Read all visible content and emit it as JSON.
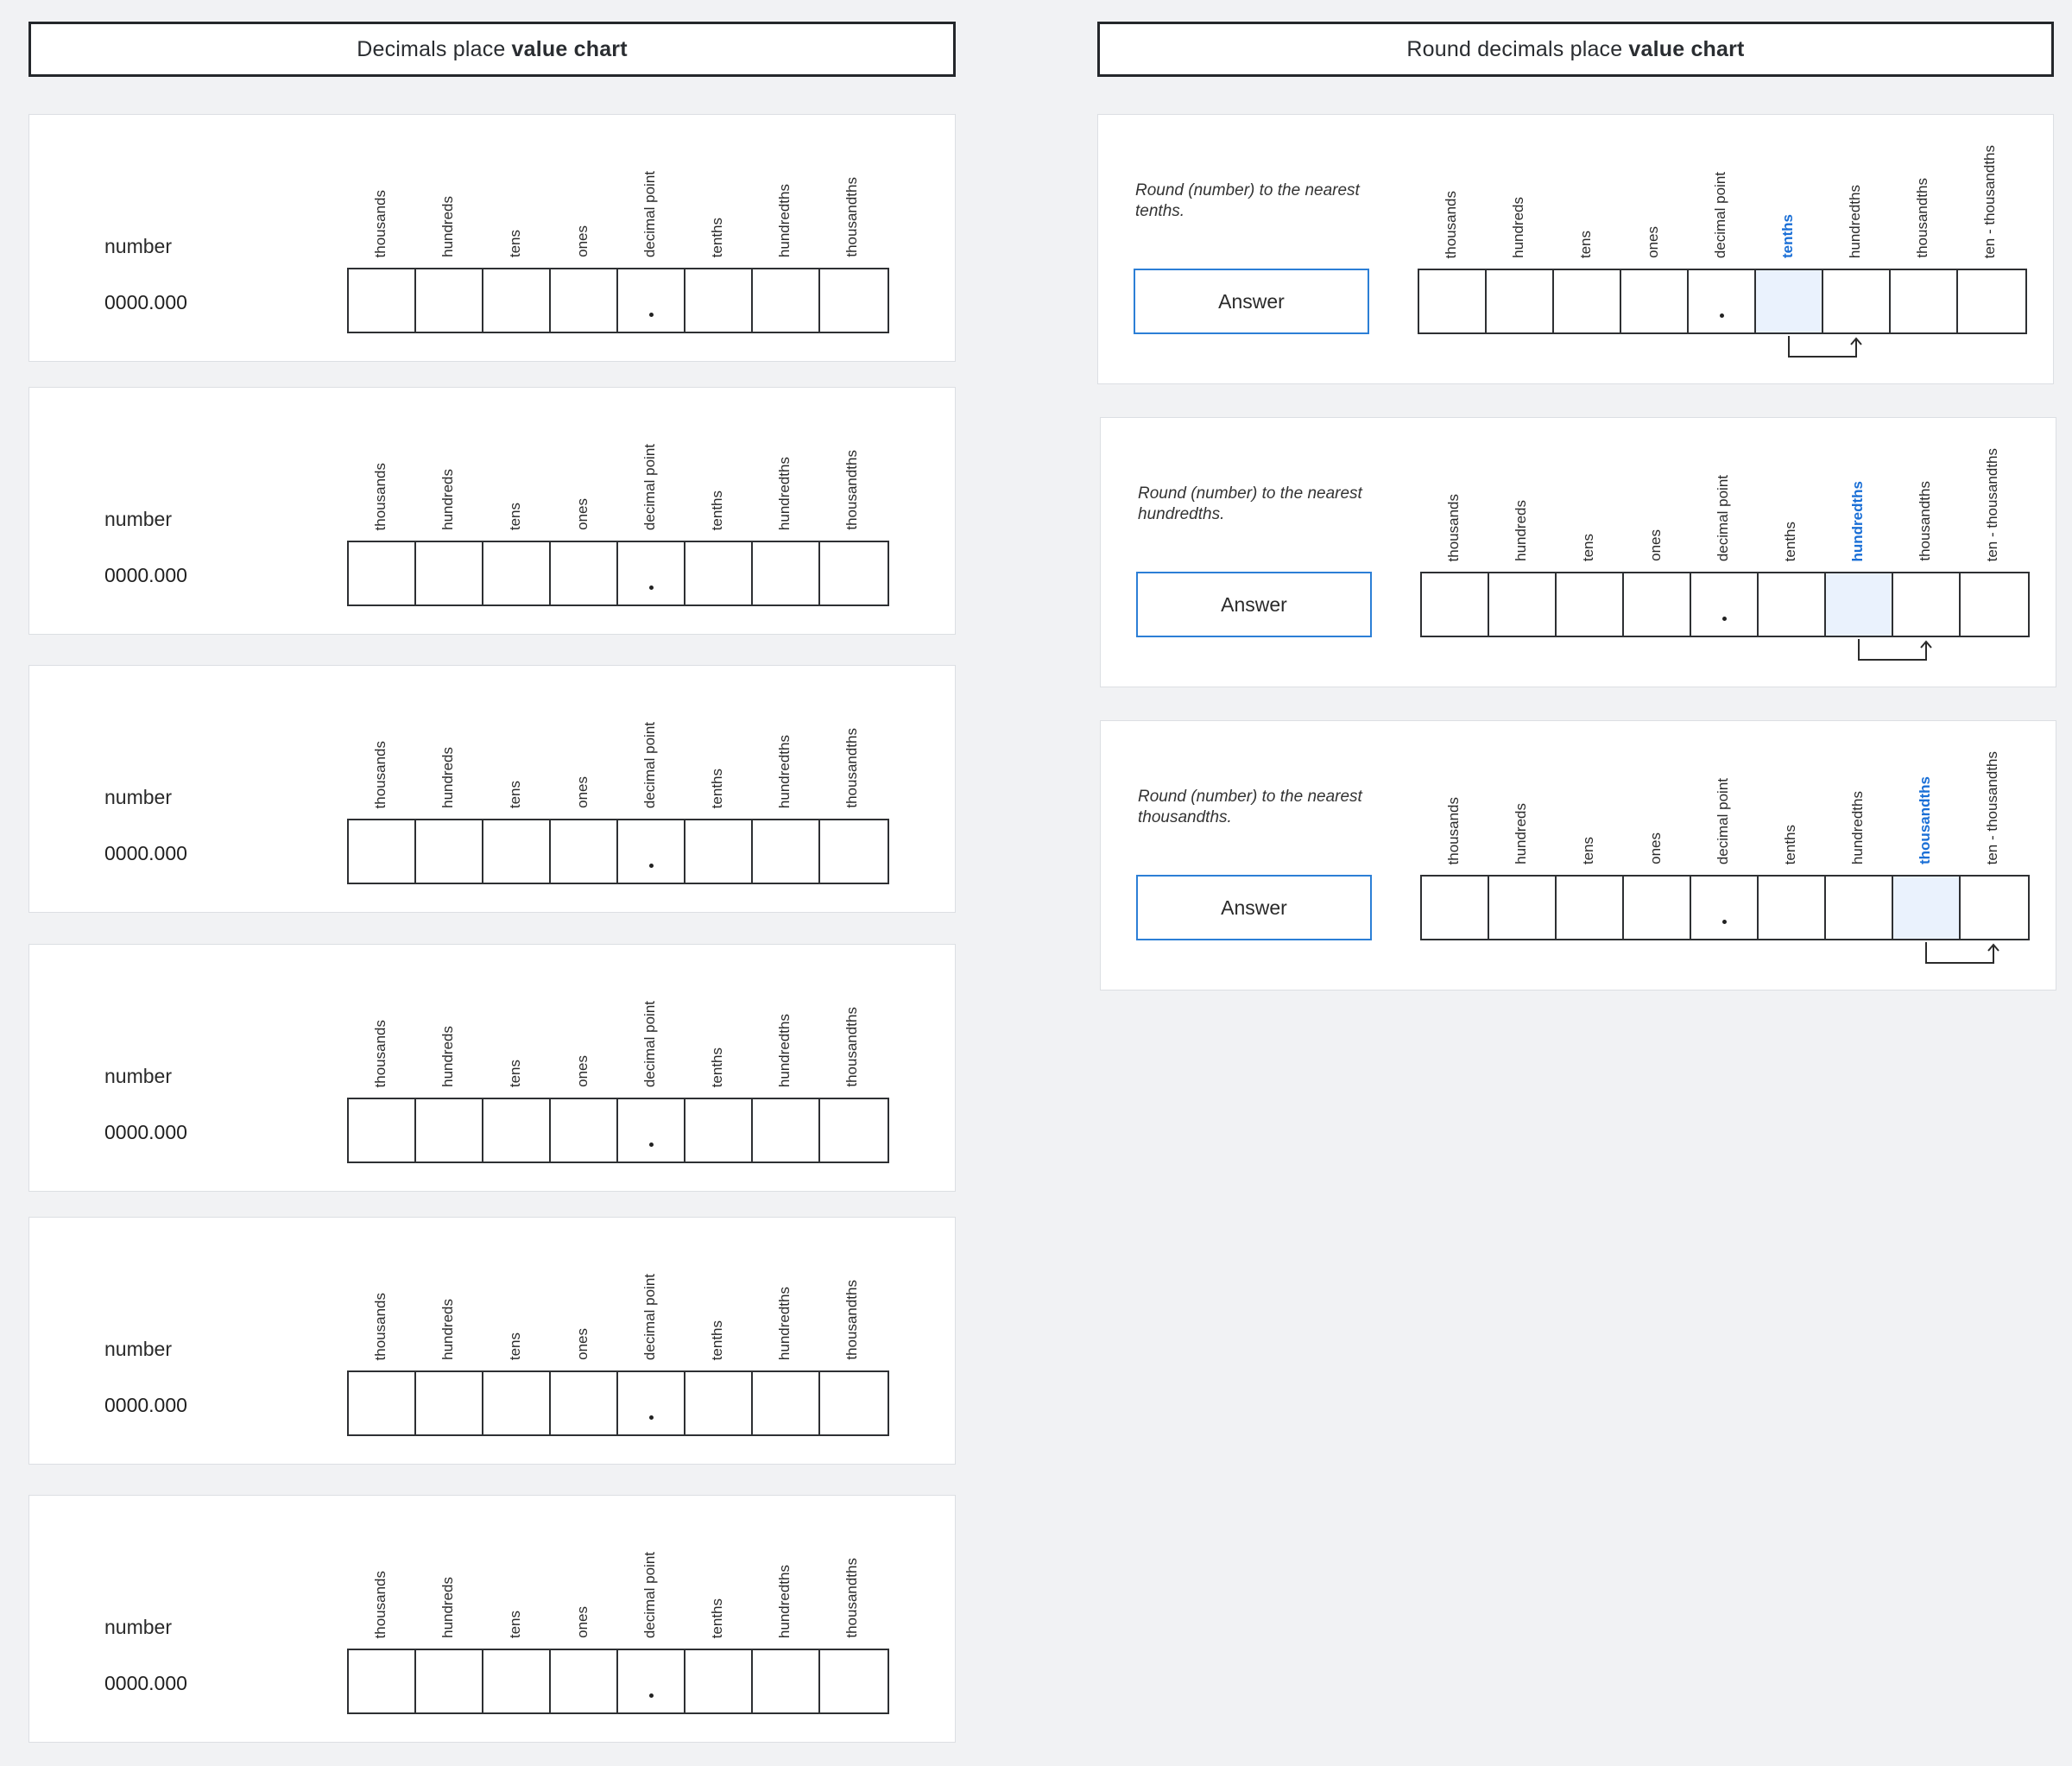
{
  "left_header": {
    "prefix": "Decimals place",
    "bold": "value chart"
  },
  "right_header": {
    "prefix": "Round decimals place",
    "bold": "value chart"
  },
  "left_columns": [
    "thousands",
    "hundreds",
    "tens",
    "ones",
    "decimal point",
    "tenths",
    "hundredths",
    "thousandths"
  ],
  "right_columns": [
    "thousands",
    "hundreds",
    "tens",
    "ones",
    "decimal point",
    "tenths",
    "hundredths",
    "thousandths",
    "ten - thousandths"
  ],
  "left_cards": [
    {
      "label": "number",
      "value": "0000.000",
      "dot": "."
    },
    {
      "label": "number",
      "value": "0000.000",
      "dot": "."
    },
    {
      "label": "number",
      "value": "0000.000",
      "dot": "."
    },
    {
      "label": "number",
      "value": "0000.000",
      "dot": "."
    },
    {
      "label": "number",
      "value": "0000.000",
      "dot": "."
    },
    {
      "label": "number",
      "value": "0000.000",
      "dot": "."
    }
  ],
  "right_cards": [
    {
      "prompt": "Round (number) to the nearest tenths.",
      "answer_label": "Answer",
      "highlight": "tenths"
    },
    {
      "prompt": "Round (number) to the nearest hundredths.",
      "answer_label": "Answer",
      "highlight": "hundredths"
    },
    {
      "prompt": "Round (number) to the nearest thousandths.",
      "answer_label": "Answer",
      "highlight": "thousandths"
    }
  ],
  "colors": {
    "highlight_text": "#1a6fd6",
    "highlight_fill": "#eaf2fd",
    "answer_border": "#2c7fd6"
  },
  "icons": {
    "arrow": "rounding-arrow-icon"
  }
}
